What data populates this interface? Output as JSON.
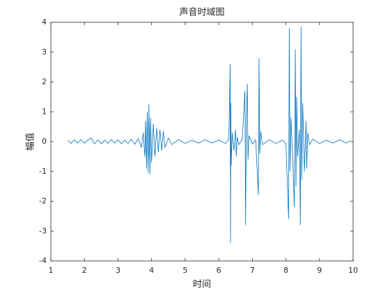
{
  "chart_data": {
    "type": "line",
    "title": "声音时域图",
    "xlabel": "时间",
    "ylabel": "幅值",
    "x": [
      1.5,
      1.6,
      1.7,
      1.8,
      1.9,
      2.0,
      2.1,
      2.2,
      2.3,
      2.4,
      2.5,
      2.6,
      2.7,
      2.8,
      2.9,
      3.0,
      3.1,
      3.2,
      3.3,
      3.4,
      3.5,
      3.6,
      3.7,
      3.75,
      3.8,
      3.82,
      3.85,
      3.87,
      3.9,
      3.92,
      3.95,
      3.97,
      4.0,
      4.05,
      4.1,
      4.15,
      4.2,
      4.25,
      4.3,
      4.35,
      4.4,
      4.5,
      4.6,
      4.8,
      5.0,
      5.2,
      5.4,
      5.6,
      5.8,
      6.0,
      6.2,
      6.3,
      6.34,
      6.35,
      6.36,
      6.37,
      6.4,
      6.45,
      6.5,
      6.52,
      6.55,
      6.6,
      6.7,
      6.78,
      6.8,
      6.82,
      6.85,
      6.87,
      6.9,
      7.0,
      7.1,
      7.18,
      7.2,
      7.22,
      7.25,
      7.3,
      7.5,
      7.7,
      7.9,
      8.0,
      8.08,
      8.1,
      8.12,
      8.15,
      8.2,
      8.25,
      8.28,
      8.3,
      8.32,
      8.35,
      8.4,
      8.43,
      8.45,
      8.47,
      8.5,
      8.55,
      8.6,
      8.62,
      8.65,
      8.7,
      8.8,
      9.0,
      9.2,
      9.4,
      9.6,
      9.8,
      9.9
    ],
    "series": [
      {
        "color": "#0072bd",
        "values": [
          0.05,
          -0.06,
          0.06,
          -0.05,
          0.07,
          -0.06,
          0.05,
          0.12,
          -0.08,
          0.06,
          -0.07,
          0.05,
          -0.06,
          0.07,
          -0.05,
          0.06,
          -0.07,
          0.05,
          -0.06,
          0.08,
          -0.09,
          0.1,
          -0.2,
          0.3,
          -0.5,
          0.7,
          -0.9,
          1.0,
          -1.05,
          1.25,
          -1.1,
          0.8,
          -0.7,
          0.6,
          -0.5,
          0.45,
          -0.35,
          0.4,
          -0.3,
          0.35,
          -0.2,
          0.12,
          -0.1,
          0.07,
          -0.06,
          0.05,
          -0.05,
          0.06,
          -0.05,
          0.05,
          -0.06,
          0.08,
          2.6,
          -3.4,
          1.3,
          -0.8,
          0.3,
          -0.3,
          0.4,
          -0.5,
          0.15,
          -0.1,
          0.08,
          1.7,
          -2.8,
          0.7,
          1.95,
          -0.6,
          0.2,
          -0.08,
          0.06,
          -1.8,
          2.8,
          -0.4,
          0.35,
          -0.1,
          0.06,
          -0.06,
          0.05,
          -0.07,
          -2.6,
          3.8,
          -1.0,
          0.8,
          -0.5,
          -2.2,
          3.1,
          -1.5,
          1.5,
          -0.5,
          0.4,
          -2.8,
          3.85,
          -1.3,
          1.3,
          -1.0,
          0.7,
          -0.9,
          0.3,
          -0.1,
          0.08,
          -0.06,
          0.05,
          -0.05,
          0.06,
          -0.05,
          0.03
        ]
      }
    ],
    "xlim": [
      1,
      10
    ],
    "xticks": [
      1,
      2,
      3,
      4,
      5,
      6,
      7,
      8,
      9,
      10
    ],
    "ylim": [
      -4,
      4
    ],
    "yticks": [
      -4,
      -3,
      -2,
      -1,
      0,
      1,
      2,
      3,
      4
    ]
  }
}
